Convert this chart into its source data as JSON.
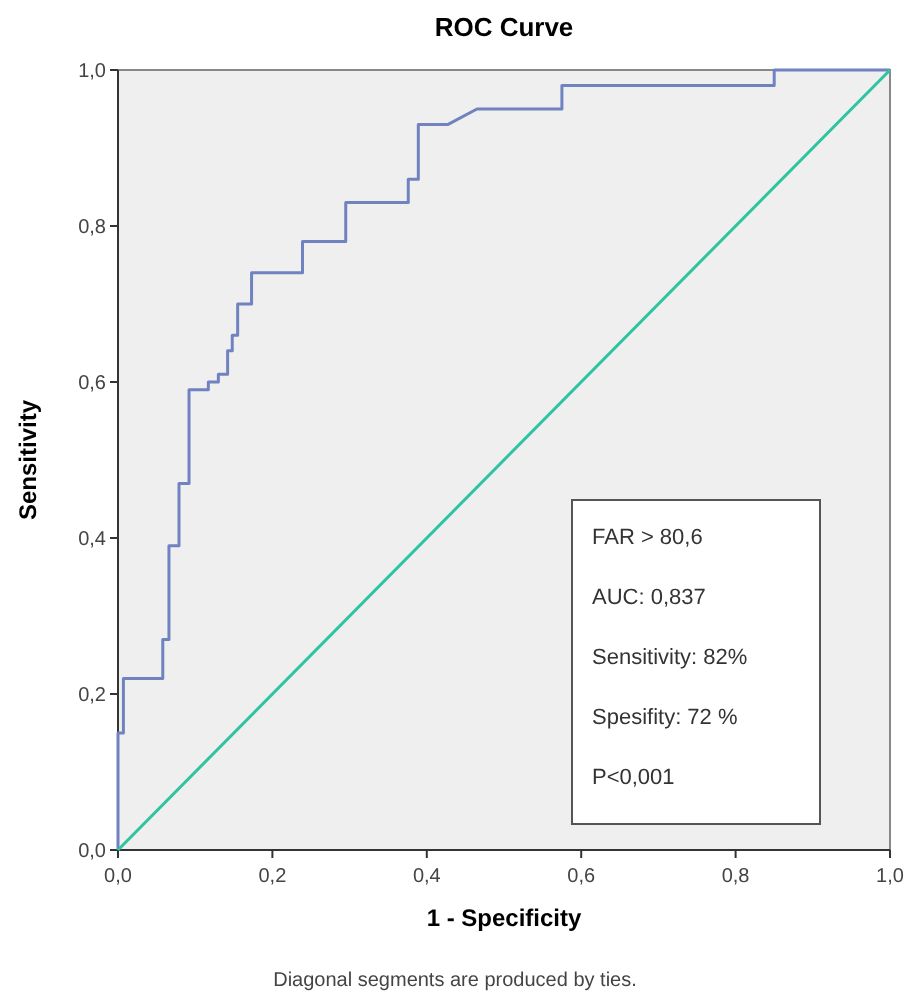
{
  "chart_data": {
    "type": "line",
    "title": "ROC Curve",
    "xlabel": "1 - Specificity",
    "ylabel": "Sensitivity",
    "xlim": [
      0,
      1
    ],
    "ylim": [
      0,
      1
    ],
    "xticks": [
      {
        "value": 0,
        "label": "0,0"
      },
      {
        "value": 0.2,
        "label": "0,2"
      },
      {
        "value": 0.4,
        "label": "0,4"
      },
      {
        "value": 0.6,
        "label": "0,6"
      },
      {
        "value": 0.8,
        "label": "0,8"
      },
      {
        "value": 1,
        "label": "1,0"
      }
    ],
    "yticks": [
      {
        "value": 0,
        "label": "0,0"
      },
      {
        "value": 0.2,
        "label": "0,2"
      },
      {
        "value": 0.4,
        "label": "0,4"
      },
      {
        "value": 0.6,
        "label": "0,6"
      },
      {
        "value": 0.8,
        "label": "0,8"
      },
      {
        "value": 1,
        "label": "1,0"
      }
    ],
    "grid": false,
    "marker": "none",
    "line_style": "solid",
    "series": [
      {
        "color": "#7083c0",
        "x": [
          0,
          0,
          0.007,
          0.007,
          0.015,
          0.015,
          0.058,
          0.058,
          0.066,
          0.066,
          0.079,
          0.079,
          0.092,
          0.092,
          0.117,
          0.117,
          0.13,
          0.13,
          0.142,
          0.142,
          0.148,
          0.148,
          0.155,
          0.155,
          0.173,
          0.173,
          0.239,
          0.239,
          0.295,
          0.295,
          0.376,
          0.376,
          0.389,
          0.389,
          0.427,
          0.465,
          0.575,
          0.575,
          0.85,
          0.85,
          1
        ],
        "values": [
          0,
          0.15,
          0.15,
          0.22,
          0.22,
          0.22,
          0.22,
          0.27,
          0.27,
          0.39,
          0.39,
          0.47,
          0.47,
          0.59,
          0.59,
          0.6,
          0.6,
          0.61,
          0.61,
          0.64,
          0.64,
          0.66,
          0.66,
          0.7,
          0.7,
          0.74,
          0.74,
          0.78,
          0.78,
          0.83,
          0.83,
          0.86,
          0.86,
          0.93,
          0.93,
          0.95,
          0.95,
          0.98,
          0.98,
          1,
          1
        ]
      },
      {
        "color": "#2ec4a0",
        "x": [
          0,
          1
        ],
        "values": [
          0,
          1
        ]
      }
    ],
    "annotations": [
      "FAR > 80,6",
      "AUC:  0,837",
      "Sensitivity: 82%",
      "Spesifity: 72 %",
      "P<0,001",
      "Diagonal segments are produced by ties."
    ]
  }
}
